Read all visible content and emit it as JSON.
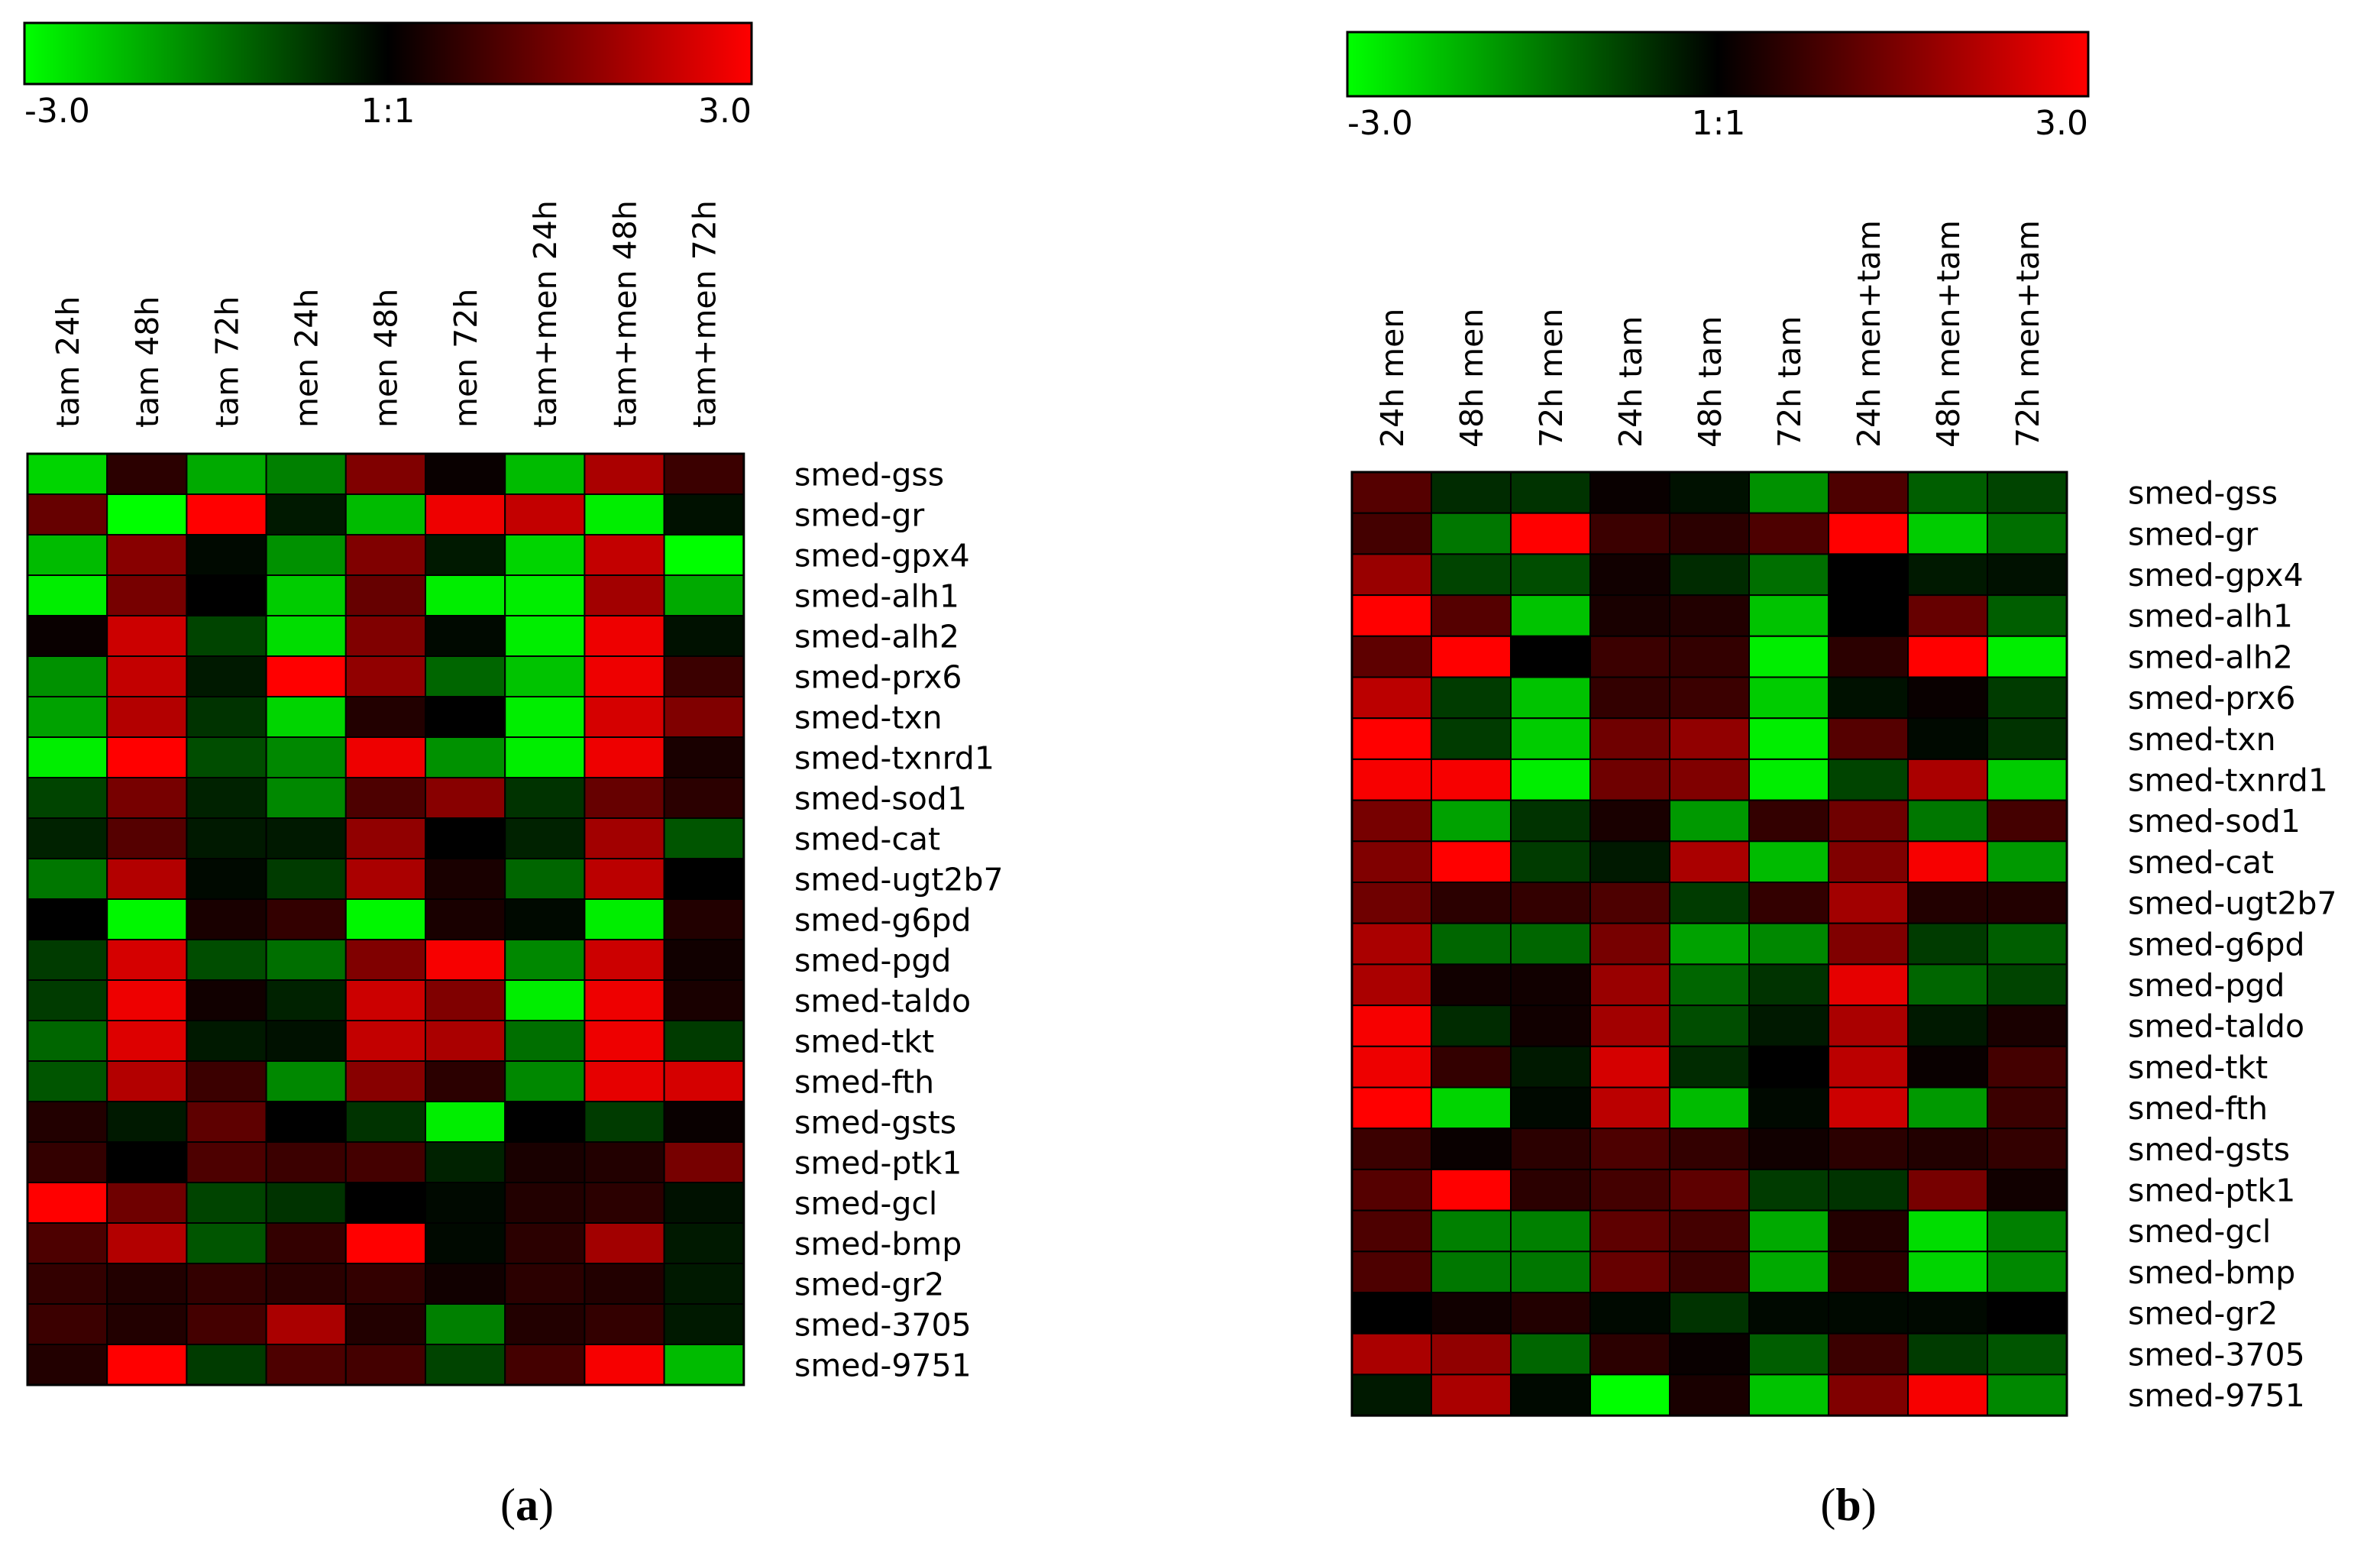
{
  "colors": {
    "low": "#00ff00",
    "mid": "#000000",
    "high": "#ff0000",
    "grid": "#000000"
  },
  "chart_data": [
    {
      "type": "heatmap",
      "panel_label": "a",
      "title": "",
      "xlabel": "",
      "ylabel": "",
      "color_range": [
        -3.0,
        3.0
      ],
      "scale": {
        "min_label": "-3.0",
        "mid_label": "1:1",
        "max_label": "3.0"
      },
      "columns": [
        "tam 24h",
        "tam 48h",
        "tam 72h",
        "men 24h",
        "men 48h",
        "men 72h",
        "tam+men 24h",
        "tam+men 48h",
        "tam+men 72h"
      ],
      "rows": [
        "smed-gss",
        "smed-gr",
        "smed-gpx4",
        "smed-alh1",
        "smed-alh2",
        "smed-prx6",
        "smed-txn",
        "smed-txnrd1",
        "smed-sod1",
        "smed-cat",
        "smed-ugt2b7",
        "smed-g6pd",
        "smed-pgd",
        "smed-taldo",
        "smed-tkt",
        "smed-fth",
        "smed-gsts",
        "smed-ptk1",
        "smed-gcl",
        "smed-bmp",
        "smed-gr2",
        "smed-3705",
        "smed-9751"
      ],
      "values": [
        [
          -2.5,
          0.5,
          -2.0,
          -1.5,
          1.5,
          0.1,
          -2.2,
          2.0,
          0.7
        ],
        [
          1.2,
          -3.0,
          3.0,
          -0.3,
          -2.2,
          2.8,
          2.3,
          -2.8,
          -0.2
        ],
        [
          -2.2,
          1.6,
          -0.1,
          -1.7,
          1.5,
          -0.3,
          -2.5,
          2.3,
          -3.0
        ],
        [
          -2.8,
          1.4,
          0.0,
          -2.4,
          1.2,
          -2.8,
          -2.8,
          1.9,
          -2.0
        ],
        [
          0.1,
          2.4,
          -0.8,
          -2.6,
          1.5,
          -0.1,
          -2.8,
          2.8,
          -0.2
        ],
        [
          -1.7,
          2.3,
          -0.3,
          3.0,
          1.7,
          -1.2,
          -2.3,
          2.8,
          0.7
        ],
        [
          -1.9,
          2.1,
          -0.6,
          -2.5,
          0.4,
          0.0,
          -2.8,
          2.5,
          1.5
        ],
        [
          -2.8,
          3.0,
          -0.9,
          -1.6,
          2.8,
          -1.7,
          -2.8,
          2.8,
          0.3
        ],
        [
          -0.8,
          1.4,
          -0.4,
          -1.6,
          0.9,
          1.6,
          -0.6,
          1.2,
          0.5
        ],
        [
          -0.4,
          1.0,
          -0.3,
          -0.3,
          1.7,
          0.0,
          -0.4,
          1.9,
          -1.0
        ],
        [
          -1.4,
          2.1,
          -0.1,
          -0.7,
          2.0,
          0.3,
          -1.2,
          2.2,
          0.0
        ],
        [
          0.0,
          -2.9,
          0.3,
          0.6,
          -2.9,
          0.3,
          -0.1,
          -2.8,
          0.4
        ],
        [
          -0.7,
          2.5,
          -0.9,
          -1.3,
          1.5,
          2.9,
          -1.6,
          2.4,
          0.2
        ],
        [
          -0.7,
          2.8,
          0.2,
          -0.4,
          2.4,
          1.5,
          -2.8,
          2.8,
          0.3
        ],
        [
          -1.2,
          2.6,
          -0.3,
          -0.2,
          2.3,
          2.0,
          -1.3,
          2.8,
          -0.7
        ],
        [
          -1.0,
          2.1,
          0.7,
          -1.6,
          1.6,
          0.5,
          -1.6,
          2.7,
          2.5
        ],
        [
          0.4,
          -0.3,
          1.1,
          0.0,
          -0.6,
          -2.8,
          0.0,
          -0.7,
          0.1
        ],
        [
          0.6,
          0.0,
          0.9,
          0.7,
          0.8,
          -0.4,
          0.3,
          0.4,
          1.4
        ],
        [
          3.0,
          1.3,
          -0.8,
          -0.6,
          0.0,
          -0.1,
          0.4,
          0.5,
          -0.2
        ],
        [
          0.9,
          2.1,
          -1.0,
          0.6,
          3.0,
          -0.1,
          0.5,
          1.9,
          -0.3
        ],
        [
          0.6,
          0.4,
          0.6,
          0.5,
          0.6,
          0.2,
          0.5,
          0.4,
          -0.3
        ],
        [
          0.7,
          0.4,
          0.8,
          2.0,
          0.4,
          -1.5,
          0.4,
          0.6,
          -0.3
        ],
        [
          0.4,
          3.0,
          -0.7,
          0.9,
          0.8,
          -0.8,
          0.8,
          2.9,
          -2.2
        ]
      ]
    },
    {
      "type": "heatmap",
      "panel_label": "b",
      "title": "",
      "xlabel": "",
      "ylabel": "",
      "color_range": [
        -3.0,
        3.0
      ],
      "scale": {
        "min_label": "-3.0",
        "mid_label": "1:1",
        "max_label": "3.0"
      },
      "columns": [
        "24h men",
        "48h men",
        "72h men",
        "24h tam",
        "48h tam",
        "72h tam",
        "24h men+tam",
        "48h men+tam",
        "72h men+tam"
      ],
      "rows": [
        "smed-gss",
        "smed-gr",
        "smed-gpx4",
        "smed-alh1",
        "smed-alh2",
        "smed-prx6",
        "smed-txn",
        "smed-txnrd1",
        "smed-sod1",
        "smed-cat",
        "smed-ugt2b7",
        "smed-g6pd",
        "smed-pgd",
        "smed-taldo",
        "smed-tkt",
        "smed-fth",
        "smed-gsts",
        "smed-ptk1",
        "smed-gcl",
        "smed-bmp",
        "smed-gr2",
        "smed-3705",
        "smed-9751"
      ],
      "values": [
        [
          1.0,
          -0.5,
          -0.6,
          0.1,
          -0.2,
          -1.7,
          0.9,
          -1.1,
          -0.8
        ],
        [
          0.8,
          -1.4,
          3.0,
          0.7,
          0.5,
          0.9,
          3.0,
          -2.4,
          -1.3
        ],
        [
          1.8,
          -0.8,
          -0.9,
          0.2,
          -0.5,
          -1.3,
          0.0,
          -0.3,
          -0.2
        ],
        [
          3.0,
          1.0,
          -2.3,
          0.3,
          0.4,
          -2.3,
          0.0,
          1.2,
          -1.1
        ],
        [
          1.1,
          3.0,
          0.0,
          0.7,
          0.6,
          -2.8,
          0.5,
          3.0,
          -2.8
        ],
        [
          2.2,
          -0.7,
          -2.3,
          0.6,
          0.7,
          -2.4,
          -0.2,
          0.1,
          -0.7
        ],
        [
          3.0,
          -0.7,
          -2.4,
          1.3,
          1.7,
          -2.8,
          1.0,
          -0.1,
          -0.6
        ],
        [
          2.9,
          2.9,
          -2.8,
          1.3,
          1.5,
          -2.8,
          -0.8,
          2.0,
          -2.4
        ],
        [
          1.4,
          -1.9,
          -0.6,
          0.3,
          -1.8,
          0.6,
          1.3,
          -1.4,
          0.8
        ],
        [
          1.5,
          3.0,
          -0.7,
          -0.3,
          2.0,
          -2.2,
          1.5,
          2.9,
          -1.8
        ],
        [
          1.3,
          0.5,
          0.6,
          0.9,
          -0.7,
          0.6,
          1.9,
          0.4,
          0.4
        ],
        [
          2.0,
          -1.2,
          -1.2,
          1.4,
          -1.9,
          -1.6,
          1.5,
          -0.7,
          -1.1
        ],
        [
          2.0,
          0.2,
          0.2,
          1.8,
          -1.2,
          -0.6,
          2.7,
          -1.2,
          -0.8
        ],
        [
          2.9,
          -0.5,
          0.2,
          1.9,
          -0.9,
          -0.3,
          2.0,
          -0.3,
          0.3
        ],
        [
          2.8,
          0.6,
          -0.3,
          2.5,
          -0.5,
          0.0,
          2.2,
          0.1,
          0.8
        ],
        [
          3.0,
          -2.5,
          -0.1,
          2.2,
          -2.2,
          -0.1,
          2.4,
          -1.8,
          0.7
        ],
        [
          0.7,
          0.1,
          0.5,
          0.9,
          0.6,
          0.2,
          0.5,
          0.4,
          0.6
        ],
        [
          1.0,
          3.0,
          0.5,
          0.8,
          1.1,
          -0.7,
          -0.6,
          1.4,
          0.2
        ],
        [
          0.9,
          -1.5,
          -1.5,
          1.1,
          0.8,
          -2.0,
          0.4,
          -2.6,
          -1.5
        ],
        [
          0.9,
          -1.4,
          -1.4,
          1.2,
          0.7,
          -2.0,
          0.5,
          -2.5,
          -1.6
        ],
        [
          0.0,
          0.2,
          0.4,
          -0.1,
          -0.6,
          -0.1,
          -0.1,
          -0.1,
          0.0
        ],
        [
          2.0,
          1.7,
          -1.2,
          0.5,
          0.1,
          -1.1,
          0.7,
          -0.7,
          -1.0
        ],
        [
          -0.3,
          2.0,
          -0.1,
          -3.0,
          0.3,
          -2.3,
          1.5,
          2.9,
          -1.6
        ]
      ]
    }
  ],
  "captions": {
    "a": {
      "open": "(",
      "letter": "a",
      "close": ")"
    },
    "b": {
      "open": "(",
      "letter": "b",
      "close": ")"
    }
  }
}
